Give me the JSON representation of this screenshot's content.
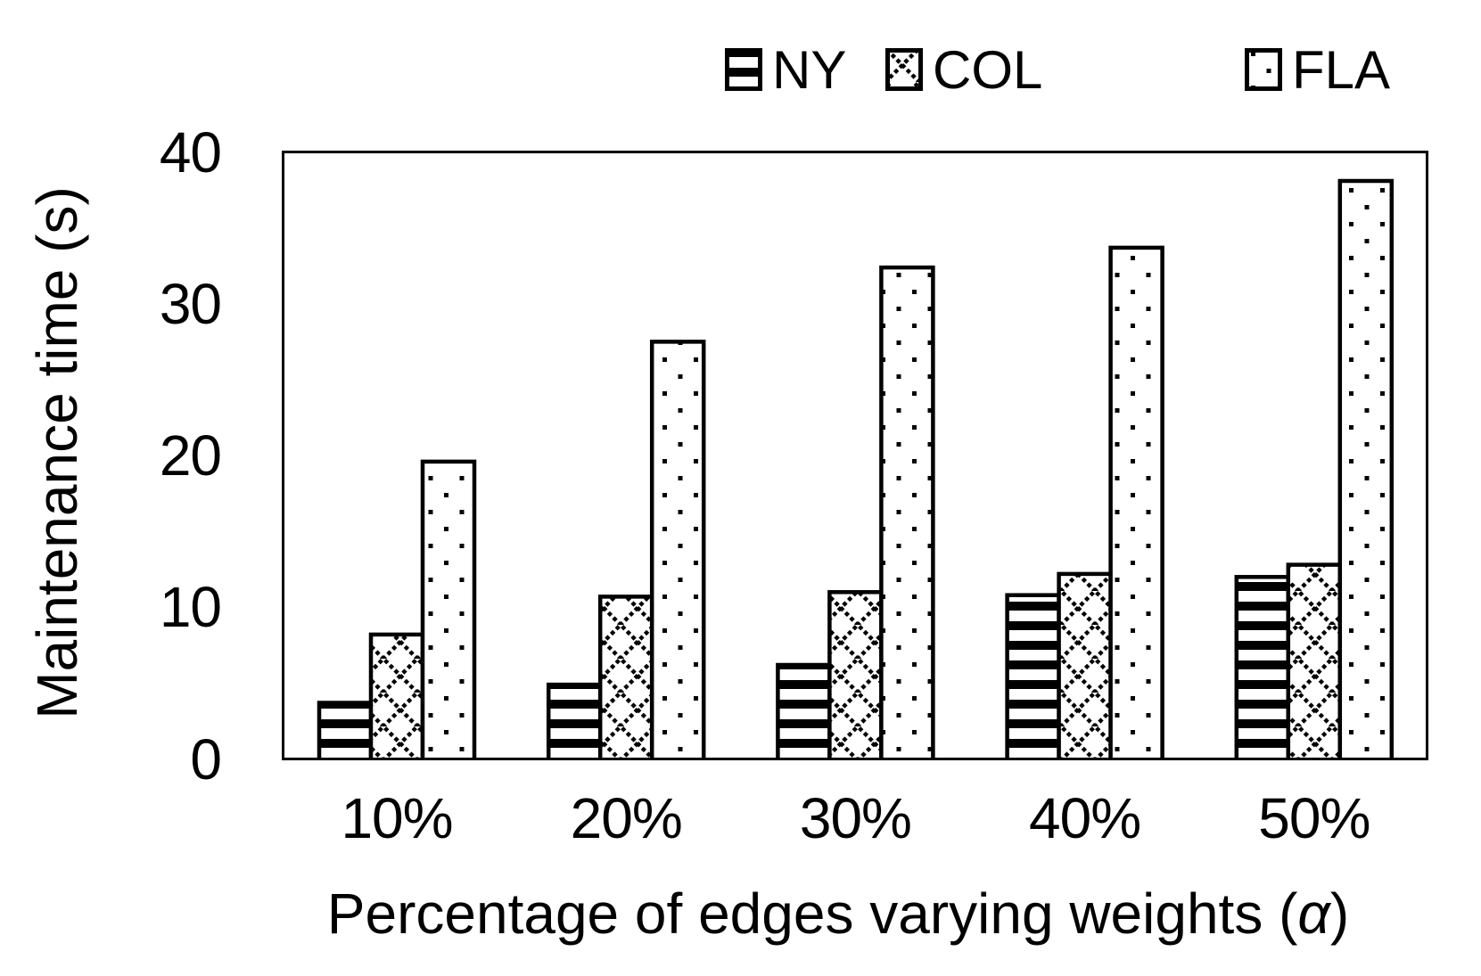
{
  "figure": {
    "kind": "bar chart, black & white patterned fills"
  },
  "x_axis_title": {
    "prefix": "Percentage of edges varying weights (",
    "alpha": "α",
    "suffix": ")"
  },
  "chart_data": {
    "type": "bar",
    "title": "",
    "categories": [
      "10%",
      "20%",
      "30%",
      "40%",
      "50%"
    ],
    "series": [
      {
        "name": "NY",
        "pattern": "horizontal-stripes",
        "values": [
          3.7,
          4.9,
          6.2,
          10.8,
          12.0
        ]
      },
      {
        "name": "COL",
        "pattern": "diagonal-crosshatch",
        "values": [
          8.2,
          10.7,
          11.0,
          12.2,
          12.8
        ]
      },
      {
        "name": "FLA",
        "pattern": "dots",
        "values": [
          19.6,
          27.5,
          32.4,
          33.7,
          38.1
        ]
      }
    ],
    "xlabel": "Percentage of edges varying weights (α)",
    "ylabel": "Maintenance time (s)",
    "ylim": [
      0,
      40
    ],
    "yticks": [
      0,
      10,
      20,
      30,
      40
    ],
    "grid": false,
    "legend_position": "top",
    "fill_color": "#ffffff",
    "stroke_color": "#000000",
    "background_color": "#ffffff"
  }
}
